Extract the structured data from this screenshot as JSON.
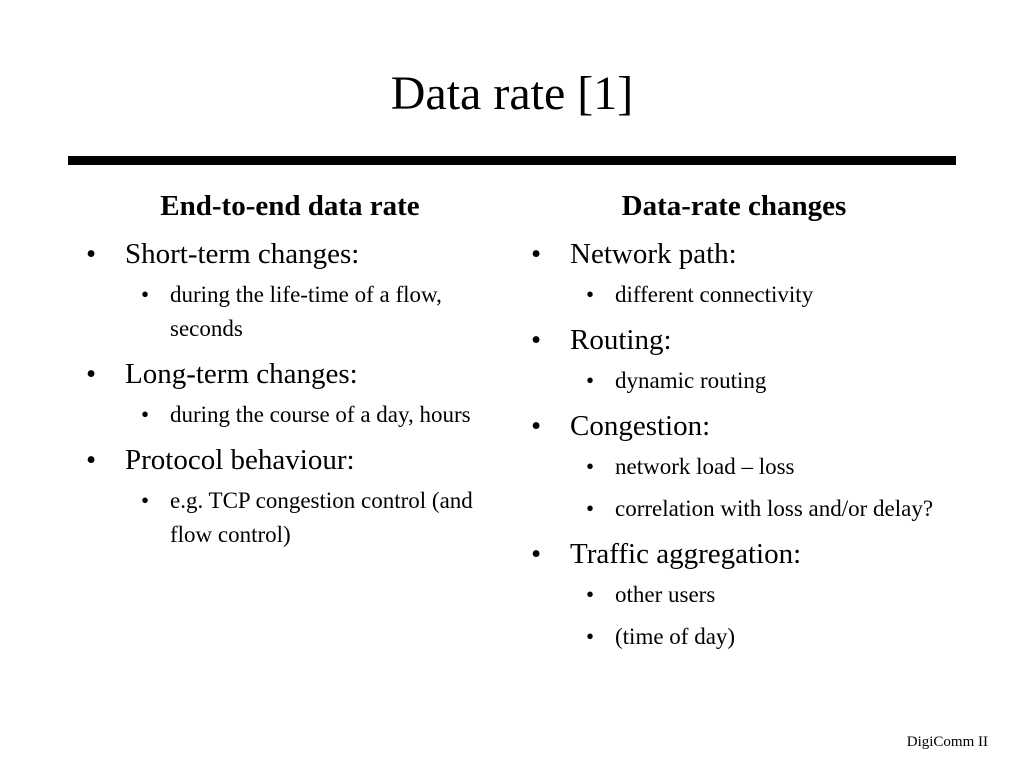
{
  "slide": {
    "title": "Data rate [1]",
    "footer": "DigiComm II"
  },
  "left_column": {
    "heading": "End-to-end data rate",
    "items": [
      {
        "text": "Short-term changes:",
        "subitems": [
          "during the life-time of a flow, seconds"
        ]
      },
      {
        "text": "Long-term changes:",
        "subitems": [
          "during the course of a day, hours"
        ]
      },
      {
        "text": "Protocol behaviour:",
        "subitems": [
          "e.g. TCP congestion control (and flow control)"
        ]
      }
    ]
  },
  "right_column": {
    "heading": "Data-rate changes",
    "items": [
      {
        "text": "Network path:",
        "subitems": [
          "different connectivity"
        ]
      },
      {
        "text": "Routing:",
        "subitems": [
          "dynamic routing"
        ]
      },
      {
        "text": "Congestion:",
        "subitems": [
          "network load – loss",
          "correlation with loss and/or delay?"
        ]
      },
      {
        "text": "Traffic aggregation:",
        "subitems": [
          "other users",
          "(time of day)"
        ]
      }
    ]
  }
}
